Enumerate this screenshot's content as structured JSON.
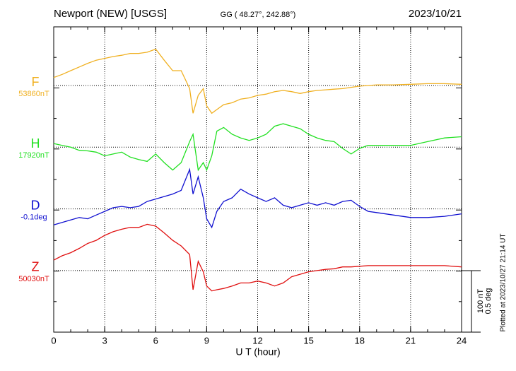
{
  "chart_data": {
    "type": "line",
    "title": "Newport (NEW)  [USGS]",
    "subtitle": "GG ( 48.27°, 242.88°)",
    "date": "2023/10/21",
    "x_label": "U T (hour)",
    "footnote": "Plotted at 2023/10/27 21:14 UT",
    "xlim": [
      0,
      24
    ],
    "xticks": [
      0,
      3,
      6,
      9,
      12,
      15,
      18,
      21,
      24
    ],
    "grid": true,
    "scale": [
      {
        "value": 100,
        "label": "100 nT"
      },
      {
        "value": 0.5,
        "label": "0.5 deg"
      }
    ],
    "x": [
      0,
      0.5,
      1,
      1.5,
      2,
      2.5,
      3,
      3.5,
      4,
      4.5,
      5,
      5.5,
      6,
      6.5,
      7,
      7.5,
      8,
      8.2,
      8.5,
      8.8,
      9,
      9.3,
      9.6,
      10,
      10.5,
      11,
      11.5,
      12,
      12.5,
      13,
      13.5,
      14,
      14.5,
      15,
      15.5,
      16,
      16.5,
      17,
      17.5,
      18,
      18.5,
      19,
      20,
      21,
      22,
      23,
      24
    ],
    "series": [
      {
        "name": "F",
        "baseline": "53860nT",
        "color": "#f0b020",
        "values": [
          13,
          18,
          24,
          30,
          36,
          41,
          44,
          47,
          49,
          52,
          52,
          54,
          59,
          41,
          24,
          24,
          -5,
          -45,
          -16,
          -5,
          -33,
          -45,
          -39,
          -31,
          -28,
          -22,
          -20,
          -16,
          -14,
          -10,
          -8,
          -10,
          -13,
          -10,
          -8,
          -7,
          -6,
          -5,
          -3,
          -1,
          0,
          1,
          1,
          2,
          3,
          3,
          2
        ]
      },
      {
        "name": "H",
        "baseline": "17920nT",
        "color": "#22e022",
        "values": [
          6,
          3,
          0,
          -5,
          -6,
          -8,
          -14,
          -11,
          -8,
          -16,
          -20,
          -23,
          -11,
          -25,
          -37,
          -25,
          9,
          21,
          -37,
          -25,
          -37,
          -14,
          26,
          32,
          21,
          15,
          11,
          15,
          21,
          34,
          38,
          34,
          30,
          21,
          15,
          11,
          9,
          -2,
          -11,
          -2,
          3,
          3,
          3,
          3,
          9,
          15,
          17
        ]
      },
      {
        "name": "D",
        "baseline": "-0.1deg",
        "color": "#1010d0",
        "axis": "y2",
        "values": [
          -0.13,
          -0.11,
          -0.09,
          -0.07,
          -0.08,
          -0.05,
          -0.02,
          0.01,
          0.02,
          0.01,
          0.02,
          0.06,
          0.08,
          0.1,
          0.12,
          0.15,
          0.32,
          0.12,
          0.26,
          0.09,
          -0.08,
          -0.15,
          -0.02,
          0.06,
          0.09,
          0.16,
          0.12,
          0.09,
          0.06,
          0.09,
          0.03,
          0.01,
          0.03,
          0.05,
          0.03,
          0.05,
          0.03,
          0.06,
          0.07,
          0.02,
          -0.02,
          -0.03,
          -0.05,
          -0.07,
          -0.07,
          -0.06,
          -0.04
        ]
      },
      {
        "name": "Z",
        "baseline": "50030nT",
        "color": "#e01010",
        "values": [
          17,
          24,
          29,
          36,
          44,
          49,
          57,
          63,
          67,
          70,
          70,
          75,
          72,
          61,
          49,
          40,
          26,
          -31,
          15,
          -2,
          -25,
          -33,
          -31,
          -29,
          -25,
          -20,
          -20,
          -17,
          -20,
          -25,
          -20,
          -10,
          -6,
          -2,
          0,
          2,
          3,
          6,
          6,
          7,
          8,
          8,
          8,
          8,
          8,
          8,
          6
        ]
      }
    ]
  }
}
